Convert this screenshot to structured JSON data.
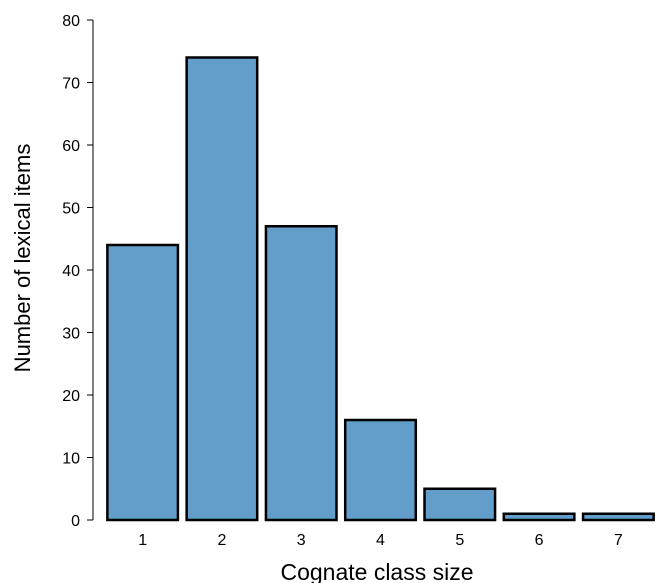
{
  "chart_data": {
    "type": "bar",
    "title": "",
    "xlabel": "Cognate class size",
    "ylabel": "Number of lexical items",
    "categories": [
      "1",
      "2",
      "3",
      "4",
      "5",
      "6",
      "7"
    ],
    "values": [
      44,
      74,
      47,
      16,
      5,
      1,
      1
    ],
    "ylim": [
      0,
      80
    ],
    "yticks": [
      "0",
      "10",
      "20",
      "30",
      "40",
      "50",
      "60",
      "70",
      "80"
    ],
    "grid": false,
    "legend": "none",
    "colors": {
      "bar_fill": "#639dc9",
      "bar_stroke": "#000000",
      "axis": "#000000"
    }
  }
}
